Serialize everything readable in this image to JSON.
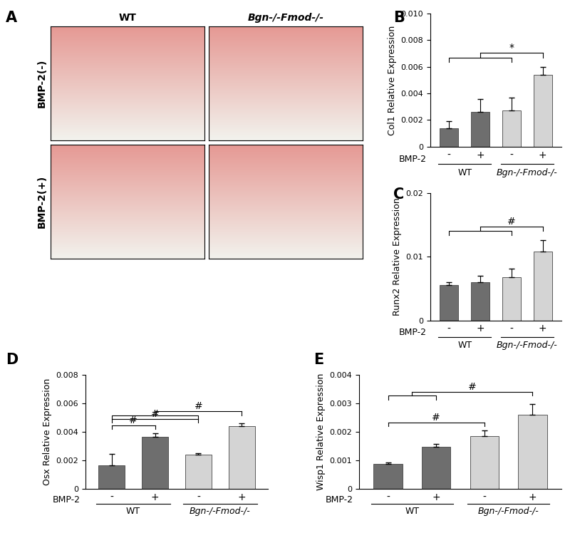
{
  "chart_data": [
    {
      "type": "image",
      "label": "A",
      "columns": [
        "WT",
        "Bgn-/-Fmod-/-"
      ],
      "rows": [
        "BMP-2(-)",
        "BMP-2(+)"
      ]
    },
    {
      "type": "bar",
      "label": "B",
      "ylabel": "Col1 Relative Expression",
      "xlabel": "BMP-2",
      "categories": [
        "-",
        "+",
        "-",
        "+"
      ],
      "groups": [
        "WT",
        "Bgn-/-Fmod-/-"
      ],
      "values": [
        0.0014,
        0.0026,
        0.0027,
        0.0054
      ],
      "errors": [
        0.0005,
        0.001,
        0.001,
        0.0006
      ],
      "colors": [
        "#6e6e6e",
        "#6e6e6e",
        "#d4d4d4",
        "#d4d4d4"
      ],
      "ylim": [
        0,
        0.01
      ],
      "yticks": [
        0,
        0.002,
        0.004,
        0.006,
        0.008,
        {
          "value": 0.01,
          "label": "0.010"
        }
      ],
      "brackets": [
        {
          "text": "*",
          "from": [
            0,
            2
          ],
          "to": [
            3
          ]
        }
      ]
    },
    {
      "type": "bar",
      "label": "C",
      "ylabel": "Runx2 Relative Expression",
      "xlabel": "BMP-2",
      "categories": [
        "-",
        "+",
        "-",
        "+"
      ],
      "groups": [
        "WT",
        "Bgn-/-Fmod-/-"
      ],
      "values": [
        0.0055,
        0.006,
        0.0068,
        0.0108
      ],
      "errors": [
        0.0005,
        0.001,
        0.0013,
        0.0018
      ],
      "colors": [
        "#6e6e6e",
        "#6e6e6e",
        "#d4d4d4",
        "#d4d4d4"
      ],
      "ylim": [
        0,
        0.02
      ],
      "yticks": [
        0,
        0.01,
        0.02
      ],
      "brackets": [
        {
          "text": "#",
          "from": [
            0,
            2
          ],
          "to": [
            3
          ]
        }
      ]
    },
    {
      "type": "bar",
      "label": "D",
      "ylabel": "Osx Relative Expression",
      "xlabel": "BMP-2",
      "categories": [
        "-",
        "+",
        "-",
        "+"
      ],
      "groups": [
        "WT",
        "Bgn-/-Fmod-/-"
      ],
      "values": [
        0.00165,
        0.00365,
        0.0024,
        0.0044
      ],
      "errors": [
        0.0008,
        0.00025,
        0.0001,
        0.0002
      ],
      "colors": [
        "#6e6e6e",
        "#6e6e6e",
        "#d4d4d4",
        "#d4d4d4"
      ],
      "ylim": [
        0,
        0.008
      ],
      "yticks": [
        0,
        0.002,
        0.004,
        0.006,
        0.008
      ],
      "brackets": [
        {
          "text": "#",
          "from": [
            0
          ],
          "to": [
            1
          ]
        },
        {
          "text": "#",
          "from": [
            0
          ],
          "to": [
            2
          ]
        },
        {
          "text": "#",
          "from": [
            0,
            2
          ],
          "to": [
            3
          ]
        }
      ]
    },
    {
      "type": "bar",
      "label": "E",
      "ylabel": "Wisp1 Relative Expression",
      "xlabel": "BMP-2",
      "categories": [
        "-",
        "+",
        "-",
        "+"
      ],
      "groups": [
        "WT",
        "Bgn-/-Fmod-/-"
      ],
      "values": [
        0.00088,
        0.00147,
        0.00185,
        0.0026
      ],
      "errors": [
        5e-05,
        0.0001,
        0.0002,
        0.00038
      ],
      "colors": [
        "#6e6e6e",
        "#6e6e6e",
        "#d4d4d4",
        "#d4d4d4"
      ],
      "ylim": [
        0,
        0.004
      ],
      "yticks": [
        0,
        0.001,
        0.002,
        0.003,
        0.004
      ],
      "brackets": [
        {
          "text": "#",
          "from": [
            0
          ],
          "to": [
            2
          ]
        },
        {
          "text": "#",
          "from": [
            0,
            1
          ],
          "to": [
            3
          ]
        }
      ]
    }
  ]
}
